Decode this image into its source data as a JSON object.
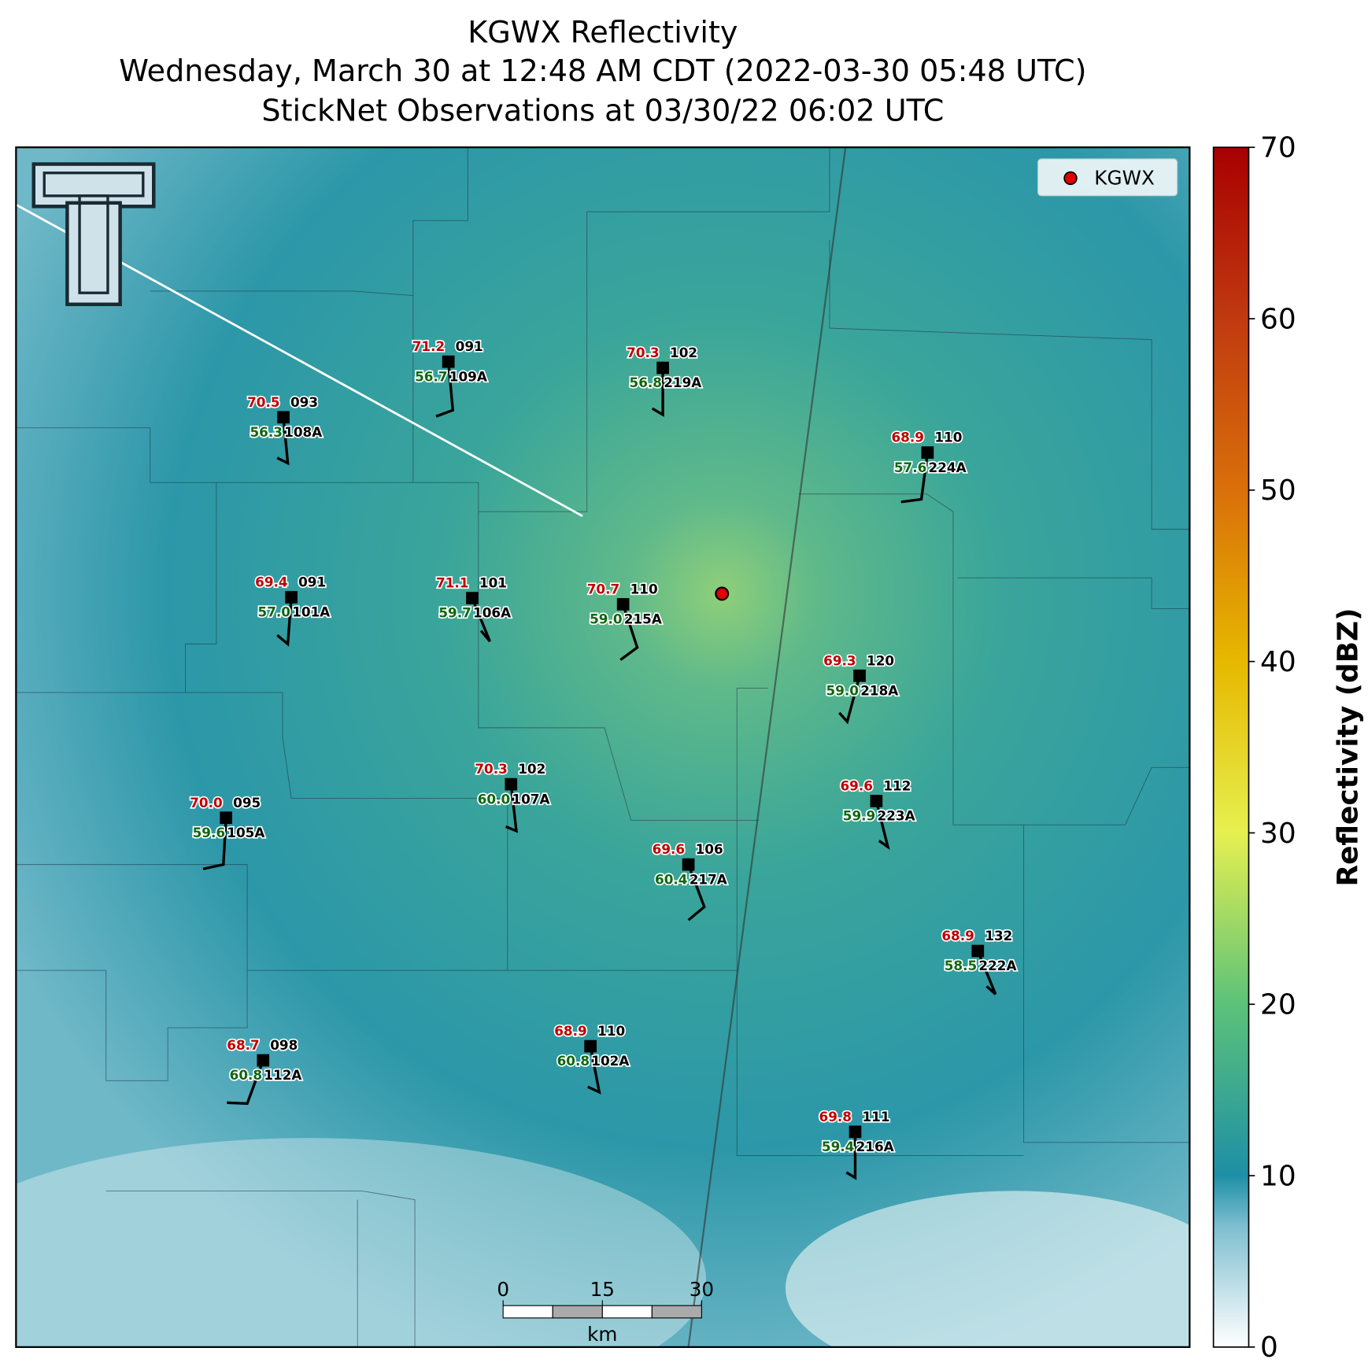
{
  "title": [
    "KGWX Reflectivity",
    "Wednesday, March 30 at 12:48 AM CDT (2022-03-30 05:48 UTC)",
    "StickNet Observations at 03/30/22 06:02 UTC"
  ],
  "legend": "KGWX",
  "colorbar": {
    "label": "Reflectivity (dBZ)",
    "lim": [
      0,
      70
    ],
    "ticks": [
      0,
      10,
      20,
      30,
      40,
      50,
      60,
      70
    ]
  },
  "scale_bar": {
    "ticks": [
      0,
      15,
      30
    ],
    "unit": "km"
  },
  "stations": [
    {
      "temp": "70.5",
      "dewpoint": "56.3",
      "code": "093",
      "id": "108A"
    },
    {
      "temp": "71.2",
      "dewpoint": "56.7",
      "code": "091",
      "id": "109A"
    },
    {
      "temp": "70.3",
      "dewpoint": "56.8",
      "code": "102",
      "id": "219A"
    },
    {
      "temp": "68.9",
      "dewpoint": "57.6",
      "code": "110",
      "id": "224A"
    },
    {
      "temp": "69.4",
      "dewpoint": "57.0",
      "code": "091",
      "id": "101A"
    },
    {
      "temp": "71.1",
      "dewpoint": "59.7",
      "code": "101",
      "id": "106A"
    },
    {
      "temp": "70.7",
      "dewpoint": "59.0",
      "code": "110",
      "id": "215A"
    },
    {
      "temp": "69.3",
      "dewpoint": "59.0",
      "code": "120",
      "id": "218A"
    },
    {
      "temp": "70.3",
      "dewpoint": "60.0",
      "code": "102",
      "id": "107A"
    },
    {
      "temp": "69.6",
      "dewpoint": "59.9",
      "code": "112",
      "id": "223A"
    },
    {
      "temp": "70.0",
      "dewpoint": "59.6",
      "code": "095",
      "id": "105A"
    },
    {
      "temp": "69.6",
      "dewpoint": "60.4",
      "code": "106",
      "id": "217A"
    },
    {
      "temp": "68.9",
      "dewpoint": "58.5",
      "code": "132",
      "id": "222A"
    },
    {
      "temp": "68.9",
      "dewpoint": "60.8",
      "code": "110",
      "id": "102A"
    },
    {
      "temp": "68.7",
      "dewpoint": "60.8",
      "code": "098",
      "id": "112A"
    },
    {
      "temp": "69.8",
      "dewpoint": "59.4",
      "code": "111",
      "id": "216A"
    }
  ]
}
